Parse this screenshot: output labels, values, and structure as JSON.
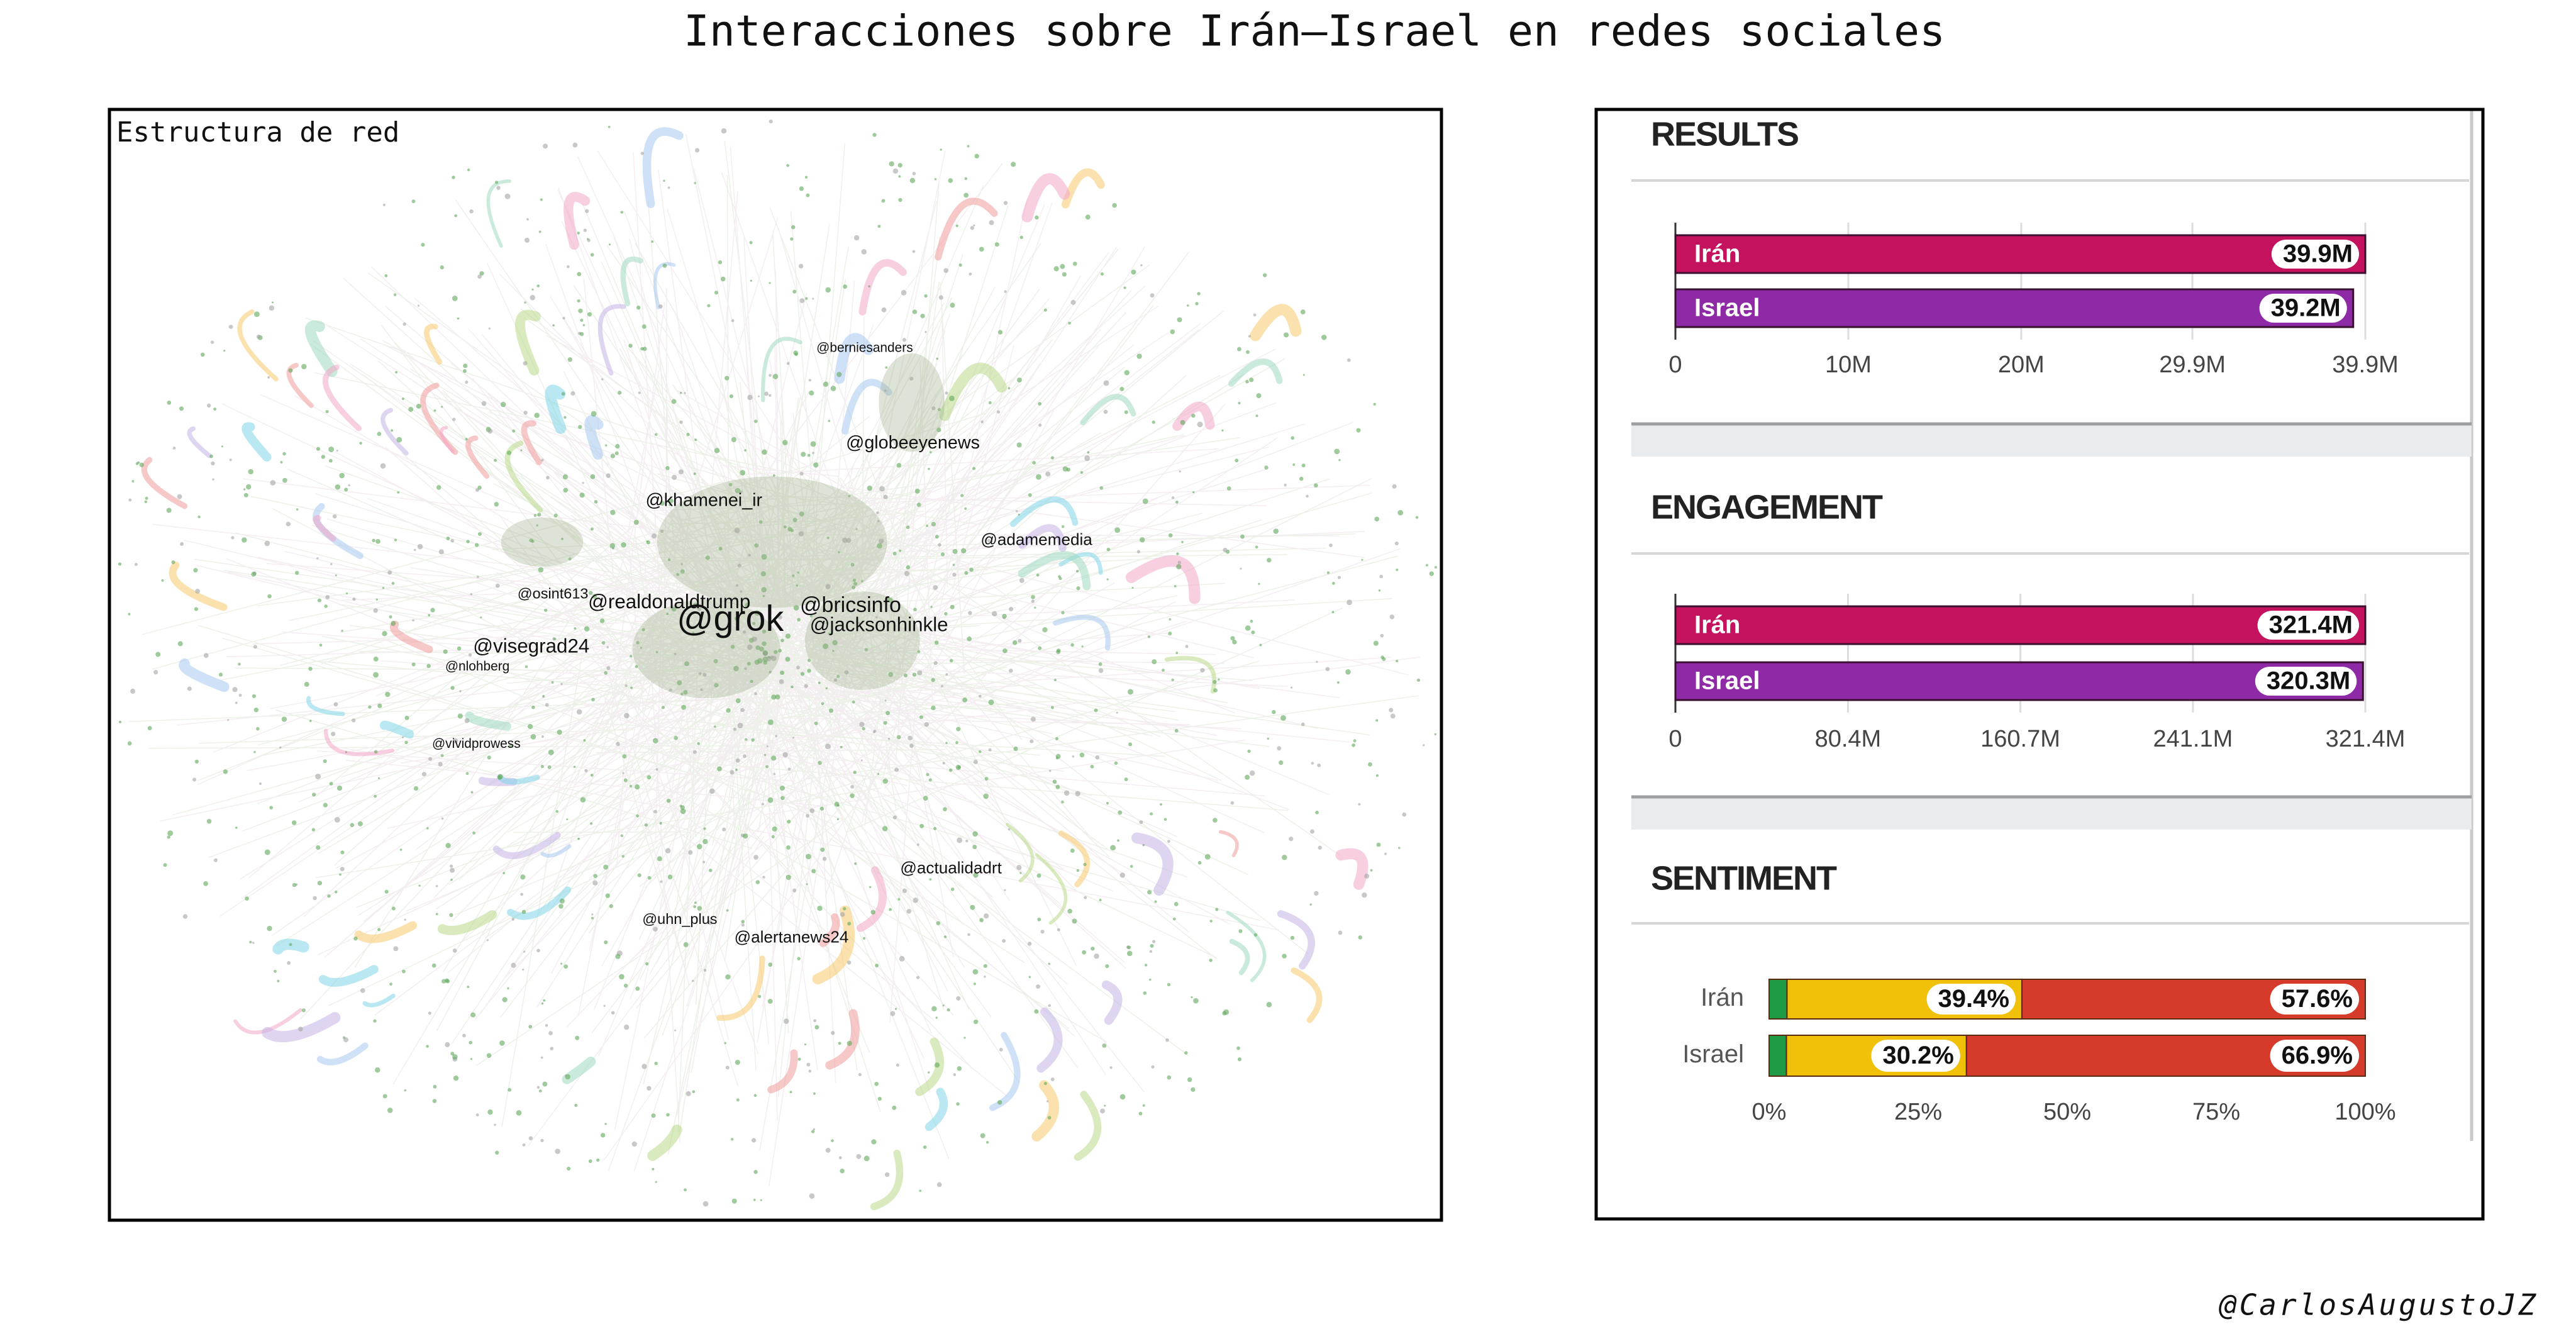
{
  "title": "Interacciones sobre Irán–Israel en redes sociales",
  "credit": "@CarlosAugustoJZ",
  "network": {
    "label": "Estructura de red",
    "nodes": [
      "@berniesanders",
      "@globeeyenews",
      "@khamenei_ir",
      "@adamemedia",
      "@osint613",
      "@realdonaldtrump",
      "@grok",
      "@bricsinfo",
      "@jacksonhinkle",
      "@visegrad24",
      "@nlohberg",
      "@vividprowess",
      "@actualidadrt",
      "@uhn_plus",
      "@alertanews24"
    ]
  },
  "chart_data": [
    {
      "type": "bar",
      "horizontal": true,
      "title": "RESULTS",
      "categories": [
        "Irán",
        "Israel"
      ],
      "values": [
        39.9,
        39.2
      ],
      "value_labels": [
        "39.9M",
        "39.2M"
      ],
      "colors": [
        "#c4125f",
        "#8f2aa6"
      ],
      "grid": true,
      "xlim": [
        0,
        39.9
      ],
      "xticks": [
        0,
        {
          "value": 10,
          "label": "10M"
        },
        {
          "value": 20,
          "label": "20M"
        },
        {
          "value": 29.9,
          "label": "29.9M"
        },
        {
          "value": 39.9,
          "label": "39.9M"
        }
      ]
    },
    {
      "type": "bar",
      "horizontal": true,
      "title": "ENGAGEMENT",
      "categories": [
        "Irán",
        "Israel"
      ],
      "values": [
        321.4,
        320.3
      ],
      "value_labels": [
        "321.4M",
        "320.3M"
      ],
      "colors": [
        "#c4125f",
        "#8f2aa6"
      ],
      "grid": true,
      "xlim": [
        0,
        321.4
      ],
      "xticks": [
        0,
        {
          "value": 80.4,
          "label": "80.4M"
        },
        {
          "value": 160.7,
          "label": "160.7M"
        },
        {
          "value": 241.1,
          "label": "241.1M"
        },
        {
          "value": 321.4,
          "label": "321.4M"
        }
      ]
    },
    {
      "type": "stacked_bar",
      "horizontal": true,
      "title": "SENTIMENT",
      "categories": [
        "Irán",
        "Israel"
      ],
      "series": [
        {
          "color": "#1f9a45",
          "values": [
            3.0,
            2.9
          ]
        },
        {
          "color": "#f1c10a",
          "values": [
            39.4,
            30.2
          ],
          "value_labels": [
            "39.4%",
            "30.2%"
          ]
        },
        {
          "color": "#d63a2a",
          "values": [
            57.6,
            66.9
          ],
          "value_labels": [
            "57.6%",
            "66.9%"
          ]
        }
      ],
      "xlim": [
        0,
        100
      ],
      "xticks": [
        {
          "value": 0,
          "label": "0%"
        },
        {
          "value": 25,
          "label": "25%"
        },
        {
          "value": 50,
          "label": "50%"
        },
        {
          "value": 75,
          "label": "75%"
        },
        {
          "value": 100,
          "label": "100%"
        }
      ]
    }
  ]
}
